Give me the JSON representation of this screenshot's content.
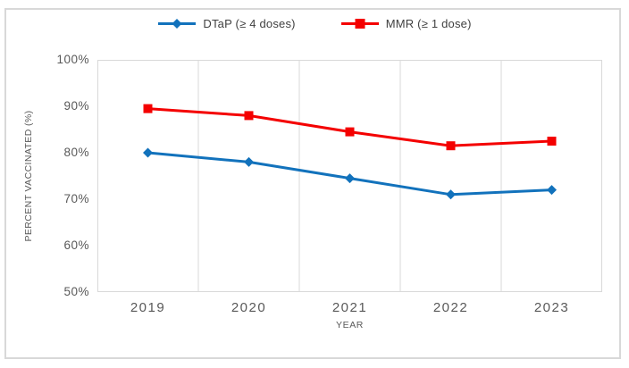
{
  "chart_data": {
    "type": "line",
    "categories": [
      "2019",
      "2020",
      "2021",
      "2022",
      "2023"
    ],
    "series": [
      {
        "key": "dtap",
        "name": "DTaP (≥ 4 doses)",
        "color": "#1272BC",
        "marker": "diamond",
        "values": [
          80,
          78,
          74.5,
          71,
          72
        ]
      },
      {
        "key": "mmr",
        "name": "MMR (≥ 1 dose)",
        "color": "#F40000",
        "marker": "square",
        "values": [
          89.5,
          88,
          84.5,
          81.5,
          82.5
        ]
      }
    ],
    "xlabel": "YEAR",
    "ylabel": "PERCENT VACCINATED (%)",
    "ylim": [
      50,
      100
    ],
    "yticks": [
      {
        "value": 100,
        "label": "100%"
      },
      {
        "value": 90,
        "label": "90%"
      },
      {
        "value": 80,
        "label": "80%"
      },
      {
        "value": 70,
        "label": "70%"
      },
      {
        "value": 60,
        "label": "60%"
      },
      {
        "value": 50,
        "label": "50%"
      }
    ],
    "grid": "vertical-only",
    "legend_position": "top-center",
    "colors": {
      "grid": "#D9D9D9",
      "axis_text": "#595959",
      "legend_text": "#404040",
      "frame_border": "#D8D8D8"
    }
  }
}
